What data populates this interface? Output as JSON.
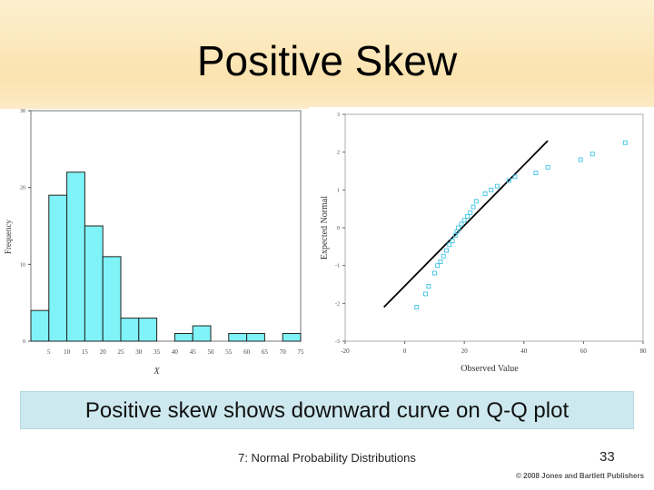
{
  "slide": {
    "title": "Positive Skew",
    "caption": "Positive skew shows downward curve on Q-Q plot",
    "footer": "7: Normal Probability Distributions",
    "page_number": "33",
    "copyright": "© 2008 Jones and Bartlett Publishers",
    "caption_bg": "#cde9ef"
  },
  "chart_data": [
    {
      "type": "bar",
      "xlabel": "X",
      "ylabel": "Frequency",
      "bar_color": "#7ff3f7",
      "ylim": [
        0,
        30
      ],
      "y_ticks": [
        "0",
        "10",
        "20",
        "30"
      ],
      "x_ticks": [
        "5",
        "10",
        "15",
        "20",
        "25",
        "30",
        "35",
        "40",
        "45",
        "50",
        "55",
        "60",
        "65",
        "70",
        "75"
      ],
      "bins": [
        {
          "from": 0,
          "to": 5,
          "value": 4
        },
        {
          "from": 5,
          "to": 10,
          "value": 19
        },
        {
          "from": 10,
          "to": 15,
          "value": 22
        },
        {
          "from": 15,
          "to": 20,
          "value": 15
        },
        {
          "from": 20,
          "to": 25,
          "value": 11
        },
        {
          "from": 25,
          "to": 30,
          "value": 3
        },
        {
          "from": 30,
          "to": 35,
          "value": 3
        },
        {
          "from": 40,
          "to": 45,
          "value": 1
        },
        {
          "from": 45,
          "to": 50,
          "value": 2
        },
        {
          "from": 55,
          "to": 60,
          "value": 1
        },
        {
          "from": 60,
          "to": 65,
          "value": 1
        },
        {
          "from": 70,
          "to": 75,
          "value": 1
        }
      ]
    },
    {
      "type": "scatter",
      "xlabel": "Observed Value",
      "ylabel": "Expected Normal",
      "point_color": "#3cc3e6",
      "xlim": [
        -20,
        80
      ],
      "ylim": [
        -3,
        3
      ],
      "x_ticks": [
        "-20",
        "0",
        "20",
        "40",
        "60",
        "80"
      ],
      "y_ticks": [
        "3",
        "2",
        "1",
        "0",
        "-1",
        "-2",
        "-3"
      ],
      "reference_line": {
        "x": [
          -7,
          48
        ],
        "y": [
          -2.1,
          2.3
        ]
      },
      "points": [
        {
          "x": 4,
          "y": -2.1
        },
        {
          "x": 7,
          "y": -1.75
        },
        {
          "x": 8,
          "y": -1.55
        },
        {
          "x": 10,
          "y": -1.2
        },
        {
          "x": 11,
          "y": -1.0
        },
        {
          "x": 12,
          "y": -0.9
        },
        {
          "x": 13,
          "y": -0.75
        },
        {
          "x": 14,
          "y": -0.6
        },
        {
          "x": 15,
          "y": -0.45
        },
        {
          "x": 16,
          "y": -0.35
        },
        {
          "x": 17,
          "y": -0.2
        },
        {
          "x": 17.5,
          "y": -0.1
        },
        {
          "x": 18,
          "y": 0.0
        },
        {
          "x": 19,
          "y": 0.1
        },
        {
          "x": 20,
          "y": 0.2
        },
        {
          "x": 21,
          "y": 0.3
        },
        {
          "x": 22,
          "y": 0.4
        },
        {
          "x": 23,
          "y": 0.55
        },
        {
          "x": 24,
          "y": 0.7
        },
        {
          "x": 27,
          "y": 0.9
        },
        {
          "x": 29,
          "y": 1.0
        },
        {
          "x": 31,
          "y": 1.1
        },
        {
          "x": 35,
          "y": 1.25
        },
        {
          "x": 37,
          "y": 1.35
        },
        {
          "x": 44,
          "y": 1.45
        },
        {
          "x": 48,
          "y": 1.6
        },
        {
          "x": 59,
          "y": 1.8
        },
        {
          "x": 63,
          "y": 1.95
        },
        {
          "x": 74,
          "y": 2.25
        }
      ]
    }
  ]
}
